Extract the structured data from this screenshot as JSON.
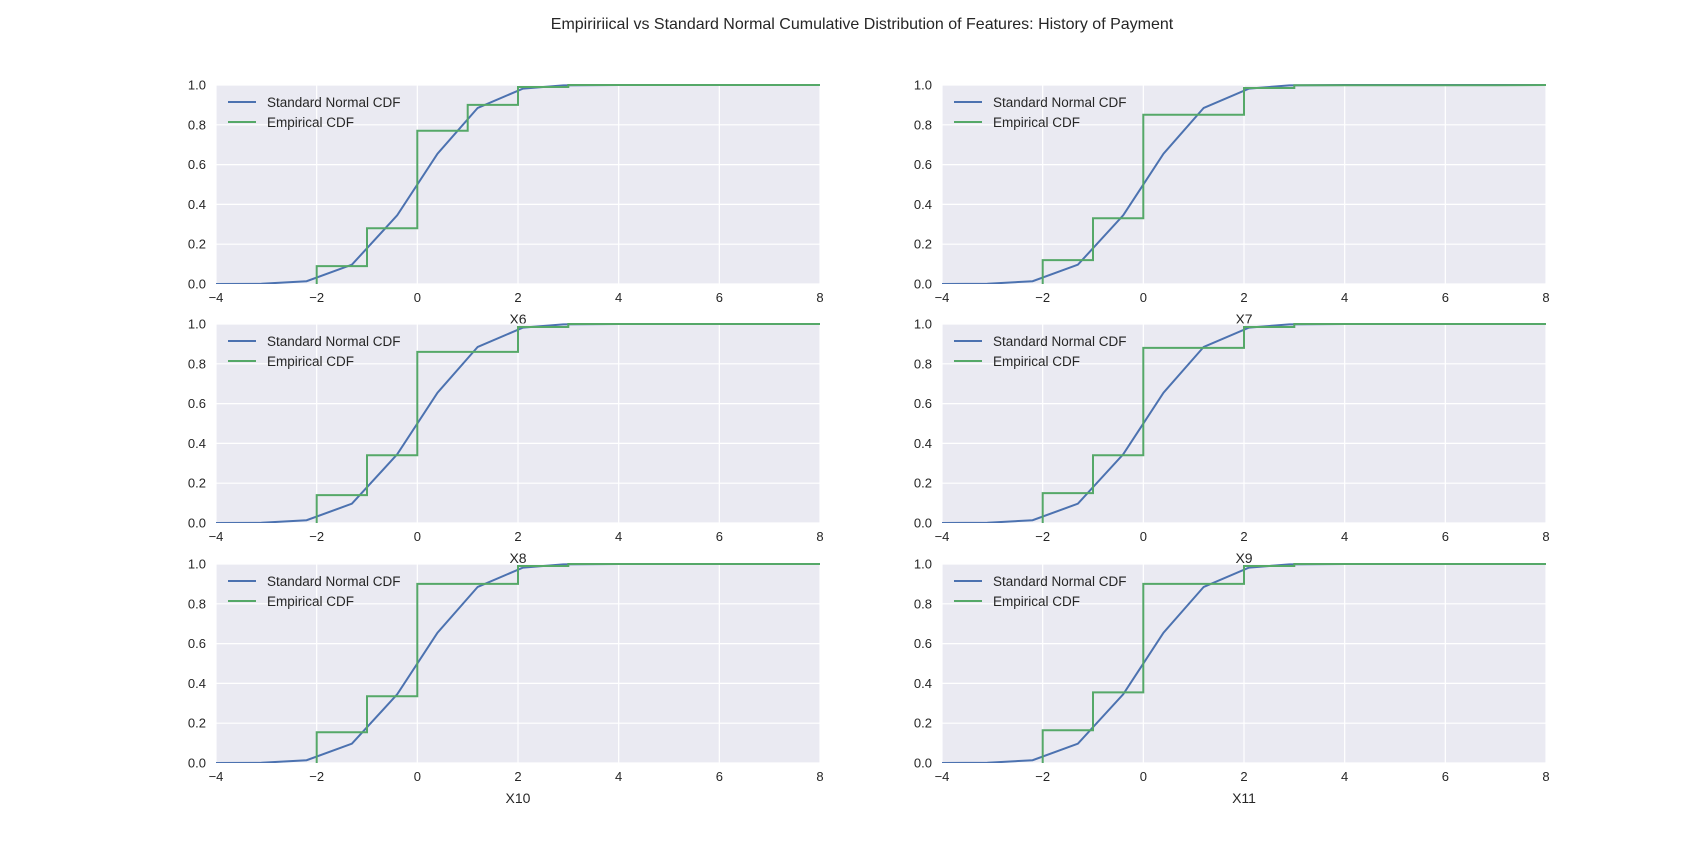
{
  "figure": {
    "title": "Empiririical vs Standard Normal Cumulative Distribution of Features: History of Payment"
  },
  "colors": {
    "normal_line": "#4c72b0",
    "empirical_line": "#55a868",
    "plot_background": "#eaeaf2",
    "grid": "#ffffff",
    "text": "#262626"
  },
  "chart_data": [
    {
      "type": "line",
      "xlabel": "X6",
      "ylabel": "",
      "xlim": [
        -4,
        8
      ],
      "ylim": [
        0,
        1
      ],
      "xticks": [
        "−4",
        "−2",
        "0",
        "2",
        "4",
        "6",
        "8"
      ],
      "yticks": [
        "0.0",
        "0.2",
        "0.4",
        "0.6",
        "0.8",
        "1.0"
      ],
      "grid": true,
      "legend_position": "top-left",
      "series": [
        {
          "name": "Standard Normal CDF",
          "style": "line",
          "x": [
            -4,
            -3.1,
            -2.2,
            -1.3,
            -0.4,
            0.4,
            1.2,
            2.1,
            2.9,
            4,
            8
          ],
          "y": [
            0.0,
            0.001,
            0.014,
            0.097,
            0.345,
            0.655,
            0.885,
            0.982,
            0.998,
            1.0,
            1.0
          ]
        },
        {
          "name": "Empirical CDF",
          "style": "step",
          "x": [
            -2,
            -2,
            -1,
            -1,
            0,
            0,
            1,
            1,
            2,
            2,
            3,
            3,
            4,
            8
          ],
          "y": [
            0.0,
            0.09,
            0.09,
            0.28,
            0.28,
            0.77,
            0.77,
            0.9,
            0.9,
            0.99,
            0.99,
            1.0,
            1.0,
            1.0
          ]
        }
      ]
    },
    {
      "type": "line",
      "xlabel": "X7",
      "ylabel": "",
      "xlim": [
        -4,
        8
      ],
      "ylim": [
        0,
        1
      ],
      "xticks": [
        "−4",
        "−2",
        "0",
        "2",
        "4",
        "6",
        "8"
      ],
      "yticks": [
        "0.0",
        "0.2",
        "0.4",
        "0.6",
        "0.8",
        "1.0"
      ],
      "grid": true,
      "legend_position": "top-left",
      "series": [
        {
          "name": "Standard Normal CDF",
          "style": "line",
          "x": [
            -4,
            -3.1,
            -2.2,
            -1.3,
            -0.4,
            0.4,
            1.2,
            2.1,
            2.9,
            4,
            8
          ],
          "y": [
            0.0,
            0.001,
            0.014,
            0.097,
            0.345,
            0.655,
            0.885,
            0.982,
            0.998,
            1.0,
            1.0
          ]
        },
        {
          "name": "Empirical CDF",
          "style": "step",
          "x": [
            -2,
            -2,
            -1,
            -1,
            0,
            0,
            2,
            2,
            3,
            3,
            7,
            8
          ],
          "y": [
            0.0,
            0.12,
            0.12,
            0.33,
            0.33,
            0.85,
            0.85,
            0.985,
            0.985,
            0.999,
            0.999,
            1.0
          ]
        }
      ]
    },
    {
      "type": "line",
      "xlabel": "X8",
      "ylabel": "",
      "xlim": [
        -4,
        8
      ],
      "ylim": [
        0,
        1
      ],
      "xticks": [
        "−4",
        "−2",
        "0",
        "2",
        "4",
        "6",
        "8"
      ],
      "yticks": [
        "0.0",
        "0.2",
        "0.4",
        "0.6",
        "0.8",
        "1.0"
      ],
      "grid": true,
      "legend_position": "top-left",
      "series": [
        {
          "name": "Standard Normal CDF",
          "style": "line",
          "x": [
            -4,
            -3.1,
            -2.2,
            -1.3,
            -0.4,
            0.4,
            1.2,
            2.1,
            2.9,
            4,
            8
          ],
          "y": [
            0.0,
            0.001,
            0.014,
            0.097,
            0.345,
            0.655,
            0.885,
            0.982,
            0.998,
            1.0,
            1.0
          ]
        },
        {
          "name": "Empirical CDF",
          "style": "step",
          "x": [
            -2,
            -2,
            -1,
            -1,
            0,
            0,
            2,
            2,
            3,
            3,
            8
          ],
          "y": [
            0.0,
            0.14,
            0.14,
            0.34,
            0.34,
            0.86,
            0.86,
            0.985,
            0.985,
            1.0,
            1.0
          ]
        }
      ]
    },
    {
      "type": "line",
      "xlabel": "X9",
      "ylabel": "",
      "xlim": [
        -4,
        8
      ],
      "ylim": [
        0,
        1
      ],
      "xticks": [
        "−4",
        "−2",
        "0",
        "2",
        "4",
        "6",
        "8"
      ],
      "yticks": [
        "0.0",
        "0.2",
        "0.4",
        "0.6",
        "0.8",
        "1.0"
      ],
      "grid": true,
      "legend_position": "top-left",
      "series": [
        {
          "name": "Standard Normal CDF",
          "style": "line",
          "x": [
            -4,
            -3.1,
            -2.2,
            -1.3,
            -0.4,
            0.4,
            1.2,
            2.1,
            2.9,
            4,
            8
          ],
          "y": [
            0.0,
            0.001,
            0.014,
            0.097,
            0.345,
            0.655,
            0.885,
            0.982,
            0.998,
            1.0,
            1.0
          ]
        },
        {
          "name": "Empirical CDF",
          "style": "step",
          "x": [
            -2,
            -2,
            -1,
            -1,
            0,
            0,
            2,
            2,
            3,
            3,
            8
          ],
          "y": [
            0.0,
            0.15,
            0.15,
            0.34,
            0.34,
            0.88,
            0.88,
            0.985,
            0.985,
            1.0,
            1.0
          ]
        }
      ]
    },
    {
      "type": "line",
      "xlabel": "X10",
      "ylabel": "",
      "xlim": [
        -4,
        8
      ],
      "ylim": [
        0,
        1
      ],
      "xticks": [
        "−4",
        "−2",
        "0",
        "2",
        "4",
        "6",
        "8"
      ],
      "yticks": [
        "0.0",
        "0.2",
        "0.4",
        "0.6",
        "0.8",
        "1.0"
      ],
      "grid": true,
      "legend_position": "top-left",
      "series": [
        {
          "name": "Standard Normal CDF",
          "style": "line",
          "x": [
            -4,
            -3.1,
            -2.2,
            -1.3,
            -0.4,
            0.4,
            1.2,
            2.1,
            2.9,
            4,
            8
          ],
          "y": [
            0.0,
            0.001,
            0.014,
            0.097,
            0.345,
            0.655,
            0.885,
            0.982,
            0.998,
            1.0,
            1.0
          ]
        },
        {
          "name": "Empirical CDF",
          "style": "step",
          "x": [
            -2,
            -2,
            -1,
            -1,
            0,
            0,
            2,
            2,
            3,
            3,
            8
          ],
          "y": [
            0.0,
            0.155,
            0.155,
            0.335,
            0.335,
            0.9,
            0.9,
            0.99,
            0.99,
            1.0,
            1.0
          ]
        }
      ]
    },
    {
      "type": "line",
      "xlabel": "X11",
      "ylabel": "",
      "xlim": [
        -4,
        8
      ],
      "ylim": [
        0,
        1
      ],
      "xticks": [
        "−4",
        "−2",
        "0",
        "2",
        "4",
        "6",
        "8"
      ],
      "yticks": [
        "0.0",
        "0.2",
        "0.4",
        "0.6",
        "0.8",
        "1.0"
      ],
      "grid": true,
      "legend_position": "top-left",
      "series": [
        {
          "name": "Standard Normal CDF",
          "style": "line",
          "x": [
            -4,
            -3.1,
            -2.2,
            -1.3,
            -0.4,
            0.4,
            1.2,
            2.1,
            2.9,
            4,
            8
          ],
          "y": [
            0.0,
            0.001,
            0.014,
            0.097,
            0.345,
            0.655,
            0.885,
            0.982,
            0.998,
            1.0,
            1.0
          ]
        },
        {
          "name": "Empirical CDF",
          "style": "step",
          "x": [
            -2,
            -2,
            -1,
            -1,
            0,
            0,
            2,
            2,
            3,
            3,
            8
          ],
          "y": [
            0.0,
            0.165,
            0.165,
            0.355,
            0.355,
            0.9,
            0.9,
            0.99,
            0.99,
            1.0,
            1.0
          ]
        }
      ]
    }
  ]
}
